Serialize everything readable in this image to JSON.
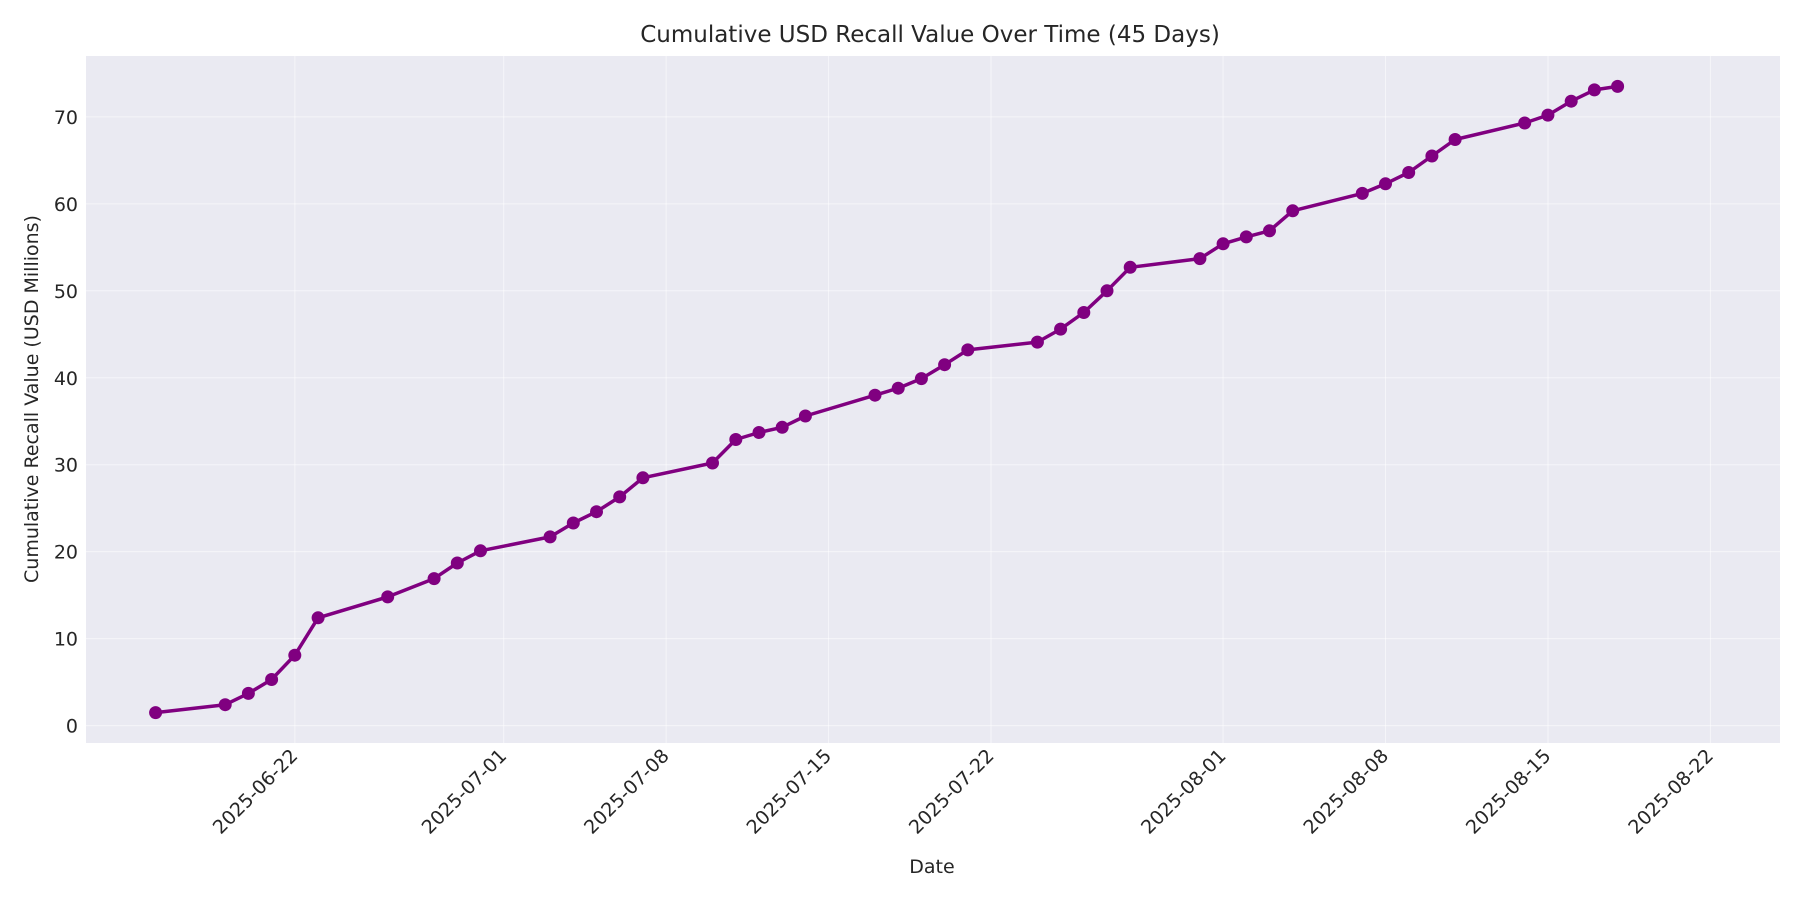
{
  "chart_data": {
    "type": "line",
    "title": "Cumulative USD Recall Value Over Time (45 Days)",
    "xlabel": "Date",
    "ylabel": "Cumulative Recall Value (USD Millions)",
    "xlim": [
      "2025-06-13",
      "2025-08-25"
    ],
    "ylim": [
      -2,
      77
    ],
    "x_ticks": [
      "2025-06-22",
      "2025-07-01",
      "2025-07-08",
      "2025-07-15",
      "2025-07-22",
      "2025-08-01",
      "2025-08-08",
      "2025-08-15",
      "2025-08-22"
    ],
    "y_ticks": [
      0,
      10,
      20,
      30,
      40,
      50,
      60,
      70
    ],
    "grid": true,
    "colors": {
      "line": "#800080",
      "plot_background": "#eaeaf2",
      "grid": "#ffffff"
    },
    "series": [
      {
        "points": [
          [
            "2025-06-16",
            1.5
          ],
          [
            "2025-06-19",
            2.4
          ],
          [
            "2025-06-20",
            3.7
          ],
          [
            "2025-06-21",
            5.3
          ],
          [
            "2025-06-22",
            8.1
          ],
          [
            "2025-06-23",
            12.4
          ],
          [
            "2025-06-26",
            14.8
          ],
          [
            "2025-06-28",
            16.9
          ],
          [
            "2025-06-29",
            18.7
          ],
          [
            "2025-06-30",
            20.1
          ],
          [
            "2025-07-03",
            21.7
          ],
          [
            "2025-07-04",
            23.3
          ],
          [
            "2025-07-05",
            24.6
          ],
          [
            "2025-07-06",
            26.3
          ],
          [
            "2025-07-07",
            28.5
          ],
          [
            "2025-07-10",
            30.2
          ],
          [
            "2025-07-11",
            32.9
          ],
          [
            "2025-07-12",
            33.7
          ],
          [
            "2025-07-13",
            34.3
          ],
          [
            "2025-07-14",
            35.6
          ],
          [
            "2025-07-17",
            38.0
          ],
          [
            "2025-07-18",
            38.8
          ],
          [
            "2025-07-19",
            39.9
          ],
          [
            "2025-07-20",
            41.5
          ],
          [
            "2025-07-21",
            43.2
          ],
          [
            "2025-07-24",
            44.1
          ],
          [
            "2025-07-25",
            45.6
          ],
          [
            "2025-07-26",
            47.5
          ],
          [
            "2025-07-27",
            50.0
          ],
          [
            "2025-07-28",
            52.7
          ],
          [
            "2025-07-31",
            53.7
          ],
          [
            "2025-08-01",
            55.4
          ],
          [
            "2025-08-02",
            56.2
          ],
          [
            "2025-08-03",
            56.9
          ],
          [
            "2025-08-04",
            59.2
          ],
          [
            "2025-08-07",
            61.2
          ],
          [
            "2025-08-08",
            62.3
          ],
          [
            "2025-08-09",
            63.6
          ],
          [
            "2025-08-10",
            65.5
          ],
          [
            "2025-08-11",
            67.4
          ],
          [
            "2025-08-14",
            69.3
          ],
          [
            "2025-08-15",
            70.2
          ],
          [
            "2025-08-16",
            71.8
          ],
          [
            "2025-08-17",
            73.1
          ],
          [
            "2025-08-18",
            73.5
          ]
        ]
      }
    ]
  }
}
